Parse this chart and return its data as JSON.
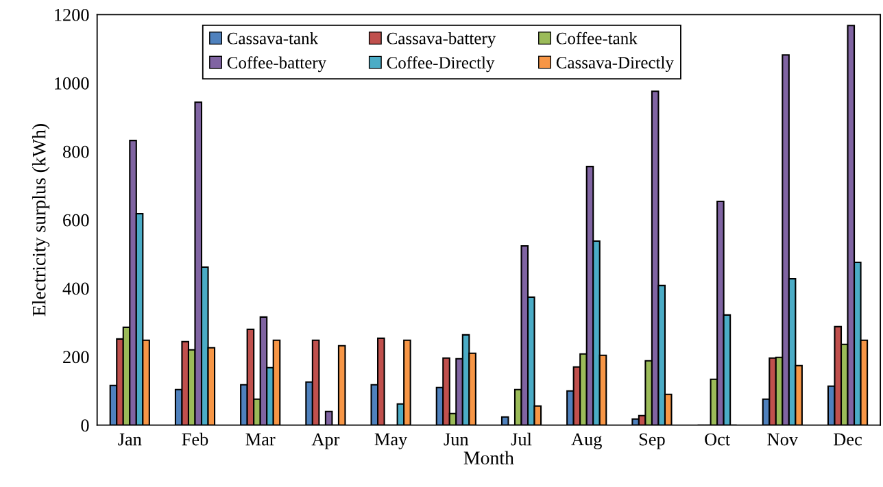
{
  "chart_data": {
    "type": "bar",
    "xlabel": "Month",
    "ylabel": "Electricity surplus (kWh)",
    "categories": [
      "Jan",
      "Feb",
      "Mar",
      "Apr",
      "May",
      "Jun",
      "Jul",
      "Aug",
      "Sep",
      "Oct",
      "Nov",
      "Dec"
    ],
    "series": [
      {
        "name": "Cassava-tank",
        "color": "#4f81bd",
        "values": [
          116,
          104,
          118,
          126,
          118,
          110,
          24,
          100,
          18,
          null,
          76,
          114
        ]
      },
      {
        "name": "Cassava-battery",
        "color": "#c0504d",
        "values": [
          252,
          244,
          280,
          248,
          254,
          196,
          0,
          170,
          28,
          0,
          196,
          288
        ]
      },
      {
        "name": "Coffee-tank",
        "color": "#9bbb59",
        "values": [
          286,
          220,
          76,
          0,
          0,
          34,
          104,
          208,
          188,
          134,
          198,
          236
        ]
      },
      {
        "name": "Coffee-battery",
        "color": "#8064a2",
        "values": [
          832,
          944,
          316,
          40,
          0,
          194,
          524,
          756,
          976,
          654,
          1082,
          1168
        ]
      },
      {
        "name": "Coffee-Directly",
        "color": "#4bacc6",
        "values": [
          618,
          462,
          168,
          0,
          62,
          264,
          374,
          538,
          408,
          322,
          428,
          476
        ]
      },
      {
        "name": "Cassava-Directly",
        "color": "#f79646",
        "values": [
          248,
          226,
          248,
          232,
          248,
          210,
          56,
          204,
          90,
          null,
          174,
          248
        ]
      }
    ],
    "ylim": [
      0,
      1200
    ],
    "yticks": [
      0,
      200,
      400,
      600,
      800,
      1000,
      1200
    ],
    "grid": false,
    "legend": "top"
  }
}
